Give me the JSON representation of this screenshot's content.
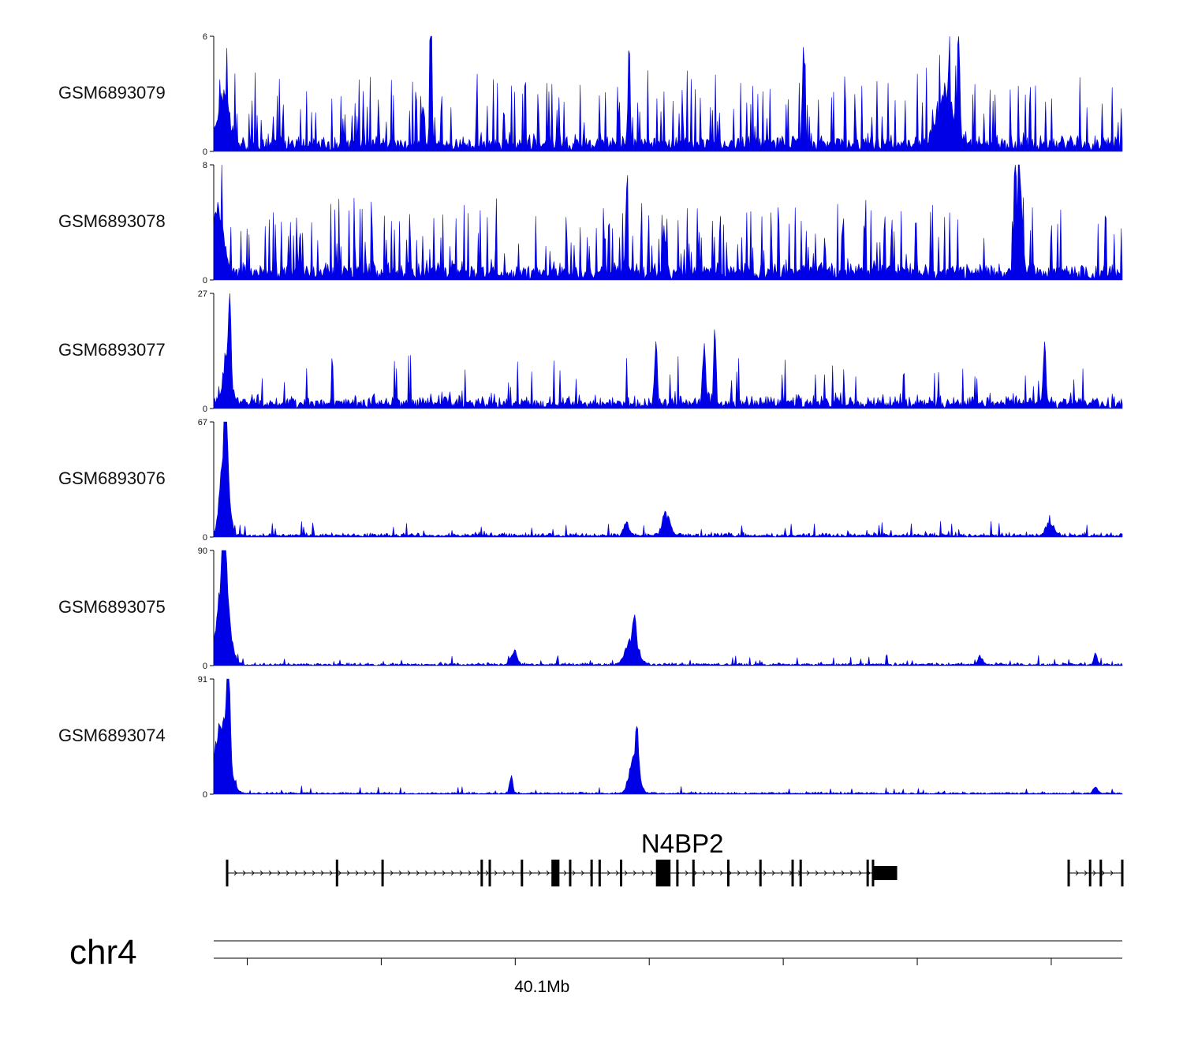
{
  "colors": {
    "signal": "#0000e6",
    "gene": "#000000",
    "axis": "#000000"
  },
  "chart_data": {
    "type": "area",
    "chromosome": "chr4",
    "x_unit": "Mb",
    "x_range_mb": [
      39.9775,
      40.3165
    ],
    "tracks": [
      {
        "name": "GSM6893079",
        "ymax": 6,
        "ymin": 0,
        "baseline": 0.6,
        "noise": 0.6,
        "spike_prob": 0.18,
        "spike_scale": 2.6,
        "peaks": [
          [
            39.981,
            3.0,
            0.002
          ],
          [
            40.0585,
            6.0,
            0.0004
          ],
          [
            40.1325,
            6.0,
            0.0004
          ],
          [
            40.1975,
            6.0,
            0.0004
          ],
          [
            40.2555,
            6.0,
            0.0004
          ],
          [
            40.2505,
            3.0,
            0.003
          ]
        ]
      },
      {
        "name": "GSM6893078",
        "ymax": 8,
        "ymin": 0,
        "baseline": 0.8,
        "noise": 0.8,
        "spike_prob": 0.18,
        "spike_scale": 3.4,
        "peaks": [
          [
            39.979,
            5.0,
            0.002
          ],
          [
            40.1315,
            6.5,
            0.0004
          ],
          [
            40.2765,
            8.0,
            0.0005
          ],
          [
            40.2785,
            6.5,
            0.0008
          ]
        ]
      },
      {
        "name": "GSM6893077",
        "ymax": 27,
        "ymin": 0,
        "baseline": 1.5,
        "noise": 3.0,
        "spike_prob": 0.05,
        "spike_scale": 8.0,
        "peaks": [
          [
            39.9835,
            25.0,
            0.0004
          ],
          [
            39.9825,
            12.0,
            0.0015
          ],
          [
            40.1645,
            21.0,
            0.0004
          ],
          [
            40.1605,
            15.0,
            0.0006
          ],
          [
            40.1425,
            16.0,
            0.0005
          ],
          [
            40.2875,
            16.0,
            0.0005
          ]
        ]
      },
      {
        "name": "GSM6893076",
        "ymax": 67,
        "ymin": 0,
        "baseline": 1.0,
        "noise": 2.5,
        "spike_prob": 0.05,
        "spike_scale": 6.0,
        "peaks": [
          [
            39.9815,
            58.0,
            0.0015
          ],
          [
            39.982,
            66.0,
            0.0005
          ],
          [
            40.1455,
            6.0,
            0.0006
          ],
          [
            40.1465,
            12.0,
            0.0015
          ],
          [
            40.1315,
            9.0,
            0.001
          ],
          [
            40.2895,
            8.0,
            0.0015
          ]
        ]
      },
      {
        "name": "GSM6893075",
        "ymax": 90,
        "ymin": 0,
        "baseline": 1.0,
        "noise": 2.0,
        "spike_prob": 0.04,
        "spike_scale": 5.0,
        "peaks": [
          [
            39.981,
            75.0,
            0.0022
          ],
          [
            39.9815,
            88.0,
            0.0006
          ],
          [
            40.0895,
            12.0,
            0.0012
          ],
          [
            40.1335,
            22.0,
            0.0022
          ],
          [
            40.1345,
            26.0,
            0.0006
          ],
          [
            40.2635,
            7.0,
            0.0009
          ],
          [
            40.3065,
            10.0,
            0.0006
          ]
        ]
      },
      {
        "name": "GSM6893074",
        "ymax": 91,
        "ymin": 0,
        "baseline": 0.8,
        "noise": 1.5,
        "spike_prob": 0.03,
        "spike_scale": 4.0,
        "peaks": [
          [
            39.9805,
            65.0,
            0.0025
          ],
          [
            39.983,
            88.0,
            0.0006
          ],
          [
            40.0885,
            15.0,
            0.0006
          ],
          [
            40.1345,
            32.0,
            0.0017
          ],
          [
            40.1355,
            35.0,
            0.0005
          ],
          [
            40.3065,
            6.0,
            0.0008
          ]
        ]
      }
    ],
    "gene": {
      "name": "N4BP2",
      "strand": "+",
      "start_mb": 39.9825,
      "end_mb": 40.2325,
      "utr_exons": [
        [
          40.2235,
          40.2325
        ]
      ],
      "cds_exons": [
        [
          40.1035,
          40.1065
        ],
        [
          40.1425,
          40.1475
        ]
      ],
      "small_exons": [
        39.9825,
        40.0235,
        40.0405,
        40.0775,
        40.0805,
        40.0925,
        40.1105,
        40.1185,
        40.1215,
        40.1295,
        40.1475,
        40.1505,
        40.1565,
        40.1695,
        40.1815,
        40.1935,
        40.1965,
        40.2215,
        40.2235
      ]
    },
    "second_gene": {
      "start_mb": 40.2965,
      "end_mb": 40.3165,
      "strand": "+",
      "small_exons": [
        40.2965,
        40.3045,
        40.3085,
        40.3165
      ]
    },
    "ticks_mb": [
      39.99,
      40.04,
      40.09,
      40.14,
      40.19,
      40.24,
      40.29
    ],
    "tick_labels": [
      {
        "at_mb": 40.1,
        "label": "40.1Mb"
      }
    ]
  }
}
